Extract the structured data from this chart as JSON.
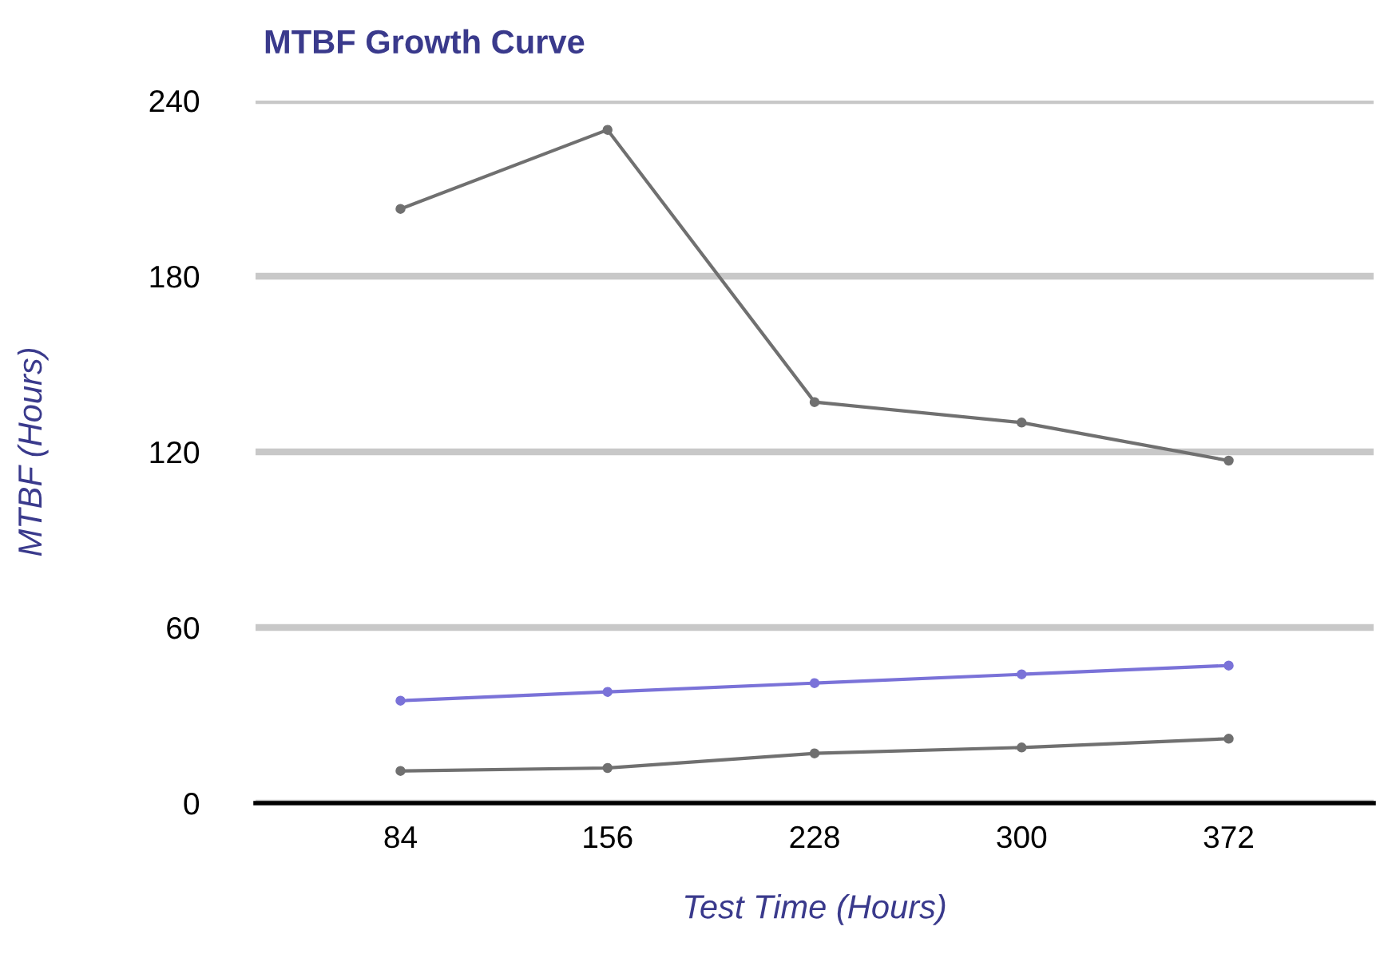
{
  "chart_data": {
    "type": "line",
    "title": "MTBF Growth Curve",
    "xlabel": "Test Time (Hours)",
    "ylabel": "MTBF (Hours)",
    "categories": [
      "84",
      "156",
      "228",
      "300",
      "372"
    ],
    "series": [
      {
        "color": "#707070",
        "values": [
          203,
          230,
          137,
          130,
          117
        ]
      },
      {
        "color": "#7a72d8",
        "values": [
          35,
          38,
          41,
          44,
          47
        ]
      },
      {
        "color": "#707070",
        "values": [
          11,
          12,
          17,
          19,
          22
        ]
      }
    ],
    "ylim": [
      0,
      240
    ],
    "yticks": [
      0,
      60,
      120,
      180,
      240
    ],
    "grid": "y",
    "marker": "circle",
    "line_style": "solid"
  }
}
